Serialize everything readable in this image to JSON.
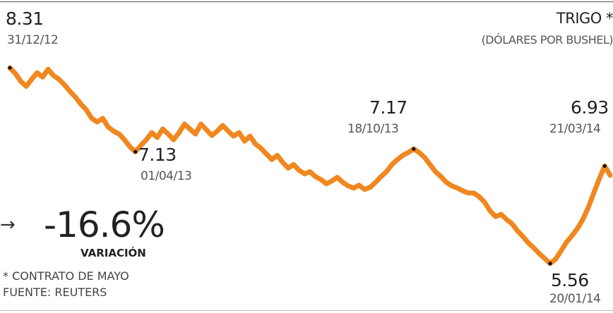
{
  "chart_data": {
    "type": "line",
    "title": "TRIGO *",
    "unit": "(DÓLARES POR BUSHEL)",
    "series": [
      {
        "color": "#f0871f",
        "values": [
          8.31,
          8.23,
          8.12,
          8.05,
          8.15,
          8.24,
          8.18,
          8.29,
          8.2,
          8.15,
          8.07,
          7.98,
          7.9,
          7.8,
          7.72,
          7.6,
          7.55,
          7.6,
          7.48,
          7.42,
          7.38,
          7.3,
          7.2,
          7.13,
          7.22,
          7.3,
          7.4,
          7.33,
          7.45,
          7.38,
          7.3,
          7.4,
          7.52,
          7.45,
          7.38,
          7.52,
          7.44,
          7.36,
          7.42,
          7.5,
          7.42,
          7.35,
          7.4,
          7.28,
          7.35,
          7.24,
          7.18,
          7.1,
          7.02,
          7.08,
          6.98,
          6.9,
          6.95,
          6.87,
          6.82,
          6.85,
          6.78,
          6.74,
          6.68,
          6.72,
          6.77,
          6.7,
          6.65,
          6.62,
          6.66,
          6.6,
          6.63,
          6.7,
          6.78,
          6.85,
          6.95,
          7.02,
          7.08,
          7.12,
          7.17,
          7.12,
          7.05,
          6.95,
          6.85,
          6.78,
          6.7,
          6.65,
          6.62,
          6.58,
          6.55,
          6.55,
          6.5,
          6.42,
          6.3,
          6.22,
          6.25,
          6.18,
          6.12,
          6.02,
          5.94,
          5.85,
          5.78,
          5.7,
          5.63,
          5.56,
          5.62,
          5.74,
          5.86,
          5.95,
          6.05,
          6.18,
          6.35,
          6.55,
          6.75,
          6.93,
          6.8
        ],
        "dates": [
          "31/12/12",
          "01/04/13",
          "18/10/13",
          "20/01/14",
          "21/03/14"
        ]
      }
    ],
    "annotations": [
      {
        "point": 0,
        "value": "8.31",
        "date": "31/12/12"
      },
      {
        "point": 23,
        "value": "7.13",
        "date": "01/04/13"
      },
      {
        "point": 74,
        "value": "7.17",
        "date": "18/10/13"
      },
      {
        "point": 99,
        "value": "5.56",
        "date": "20/01/14"
      },
      {
        "point": 109,
        "value": "6.93",
        "date": "21/03/14"
      }
    ],
    "change": {
      "arrow": "→",
      "value": "-16.6%",
      "label": "VARIACIÓN"
    },
    "footnote": "* CONTRATO DE MAYO",
    "source": "FUENTE: REUTERS",
    "ylim": [
      5.3,
      8.55
    ],
    "grid": false,
    "legend": "none"
  }
}
